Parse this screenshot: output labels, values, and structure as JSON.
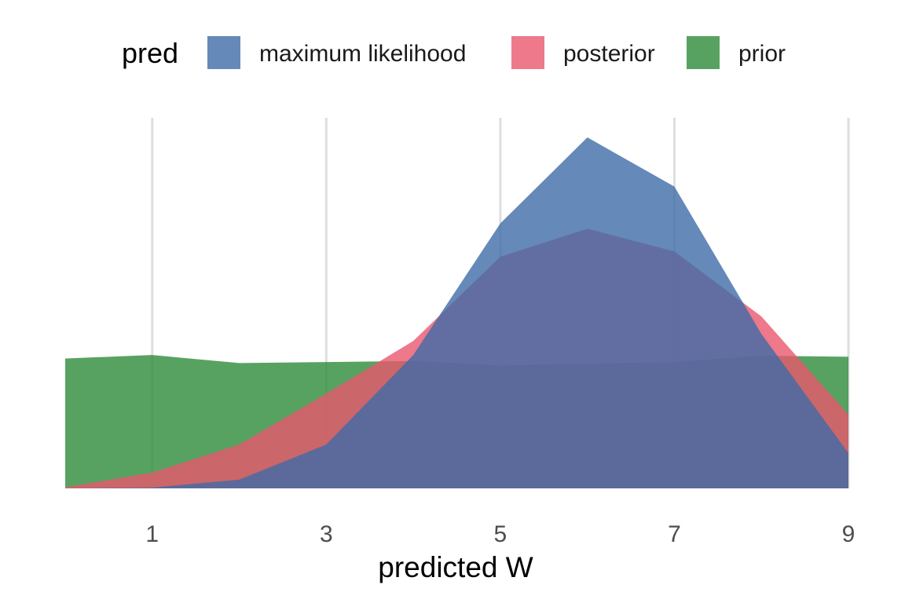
{
  "chart_data": {
    "type": "area",
    "title": "",
    "xlabel": "predicted W",
    "ylabel": "",
    "xlim": [
      0,
      9
    ],
    "ylim": [
      0,
      1
    ],
    "x_ticks": [
      1,
      3,
      5,
      7,
      9
    ],
    "grid": "vertical major gridlines only",
    "y_axis": "hidden",
    "legend": {
      "position": "top",
      "title": "pred",
      "entries": [
        "maximum likelihood",
        "posterior",
        "prior"
      ]
    },
    "x": [
      0,
      1,
      2,
      3,
      4,
      5,
      6,
      7,
      8,
      9
    ],
    "series": [
      {
        "name": "prior",
        "color": "#2e8b3a",
        "values": [
          0.37,
          0.38,
          0.357,
          0.36,
          0.363,
          0.35,
          0.355,
          0.36,
          0.378,
          0.375
        ]
      },
      {
        "name": "posterior",
        "color": "#e8576e",
        "values": [
          0.003,
          0.045,
          0.125,
          0.27,
          0.42,
          0.66,
          0.74,
          0.675,
          0.49,
          0.21
        ]
      },
      {
        "name": "maximum likelihood",
        "color": "#3e6ba6",
        "values": [
          0.0,
          0.002,
          0.025,
          0.125,
          0.38,
          0.755,
          1.0,
          0.86,
          0.44,
          0.1
        ]
      }
    ]
  }
}
